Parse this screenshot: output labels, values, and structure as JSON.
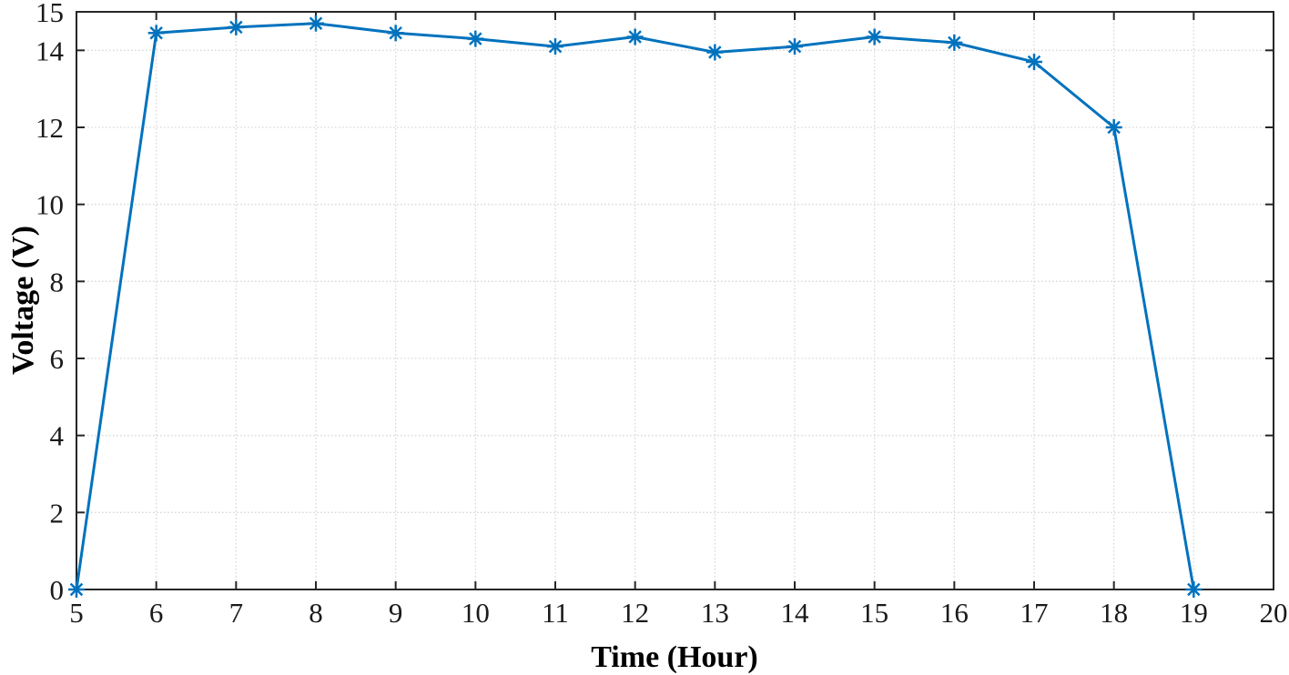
{
  "figure": {
    "background": "#ffffff"
  },
  "chart_data": {
    "type": "line",
    "title": "",
    "xlabel": "Time (Hour)",
    "ylabel": "Voltage (V)",
    "x": [
      5,
      6,
      7,
      8,
      9,
      10,
      11,
      12,
      13,
      14,
      15,
      16,
      17,
      18,
      19
    ],
    "series": [
      {
        "name": "Voltage",
        "values": [
          0,
          14.45,
          14.6,
          14.7,
          14.45,
          14.3,
          14.1,
          14.35,
          13.95,
          14.1,
          14.35,
          14.2,
          13.7,
          12.0,
          0
        ]
      }
    ],
    "xlim": [
      5,
      20
    ],
    "ylim": [
      0,
      15
    ],
    "xticks": [
      5,
      6,
      7,
      8,
      9,
      10,
      11,
      12,
      13,
      14,
      15,
      16,
      17,
      18,
      19,
      20
    ],
    "yticks": [
      0,
      2,
      4,
      6,
      8,
      10,
      12,
      14,
      15
    ],
    "grid": true,
    "legend": null,
    "marker": "asterisk",
    "colors": {
      "line": "#0072BD",
      "grid": "#d9d9d9",
      "axis": "#262626",
      "tick_label": "#1a1a1a"
    }
  }
}
